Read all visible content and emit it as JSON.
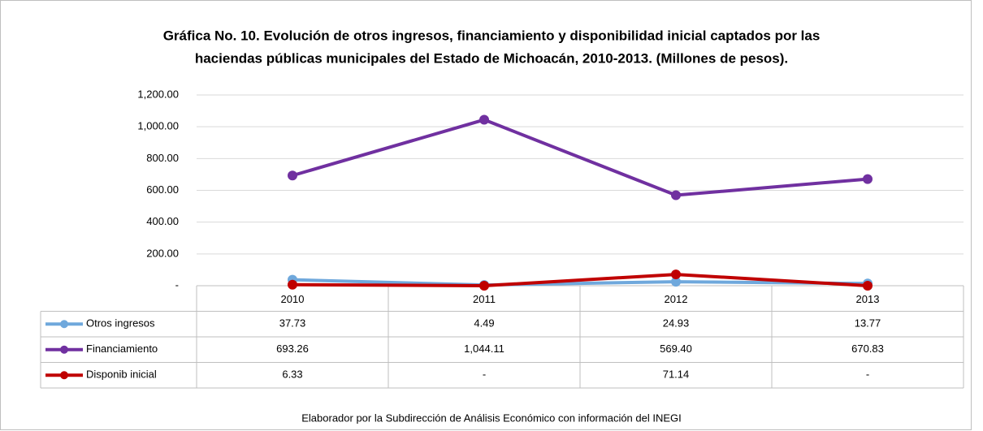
{
  "chart_data": {
    "type": "line",
    "title": "Gráfica No. 10. Evolución de otros ingresos, financiamiento y disponibilidad inicial captados por las",
    "subtitle": "haciendas públicas municipales del Estado de Michoacán, 2010-2013. (Millones de pesos).",
    "categories": [
      "2010",
      "2011",
      "2012",
      "2013"
    ],
    "series": [
      {
        "name": "Otros ingresos",
        "color": "#6fa8dc",
        "values": [
          37.73,
          4.49,
          24.93,
          13.77
        ],
        "value_labels": [
          "37.73",
          "4.49",
          "24.93",
          "13.77"
        ]
      },
      {
        "name": "Financiamiento",
        "color": "#7030a0",
        "values": [
          693.26,
          1044.11,
          569.4,
          670.83
        ],
        "value_labels": [
          "693.26",
          "1,044.11",
          "569.40",
          "670.83"
        ]
      },
      {
        "name": "Disponib inicial",
        "color": "#c00000",
        "values": [
          6.33,
          0,
          71.14,
          0
        ],
        "value_labels": [
          "6.33",
          "-",
          "71.14",
          "-"
        ]
      }
    ],
    "ylim": [
      0,
      1200
    ],
    "yticks": [
      {
        "value": 0,
        "label": "-"
      },
      {
        "value": 200,
        "label": "200.00"
      },
      {
        "value": 400,
        "label": "400.00"
      },
      {
        "value": 600,
        "label": "600.00"
      },
      {
        "value": 800,
        "label": "800.00"
      },
      {
        "value": 1000,
        "label": "1,000.00"
      },
      {
        "value": 1200,
        "label": "1,200.00"
      }
    ],
    "grid": true,
    "source": "Elaborador por la Subdirección de Análisis Económico con información del INEGI"
  }
}
